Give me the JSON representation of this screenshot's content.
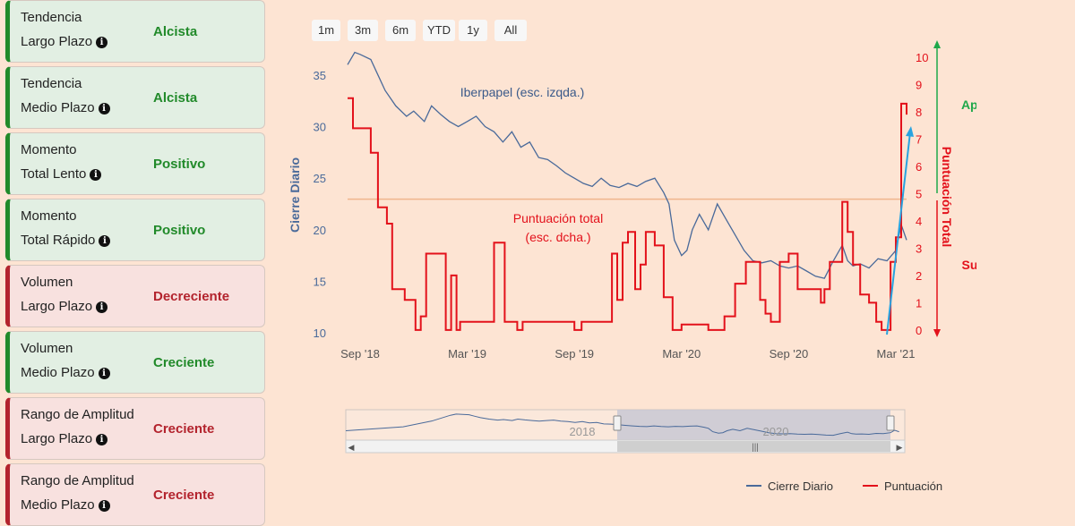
{
  "indicators": [
    {
      "line1": "Tendencia",
      "line2": "Largo Plazo",
      "status": "Alcista",
      "tone": "positive"
    },
    {
      "line1": "Tendencia",
      "line2": "Medio Plazo",
      "status": "Alcista",
      "tone": "positive"
    },
    {
      "line1": "Momento",
      "line2": "Total Lento",
      "status": "Positivo",
      "tone": "positive"
    },
    {
      "line1": "Momento",
      "line2": "Total Rápido",
      "status": "Positivo",
      "tone": "positive"
    },
    {
      "line1": "Volumen",
      "line2": "Largo Plazo",
      "status": "Decreciente",
      "tone": "negative"
    },
    {
      "line1": "Volumen",
      "line2": "Medio Plazo",
      "status": "Creciente",
      "tone": "positive"
    },
    {
      "line1": "Rango de Amplitud",
      "line2": "Largo Plazo",
      "status": "Creciente",
      "tone": "negative"
    },
    {
      "line1": "Rango de Amplitud",
      "line2": "Medio Plazo",
      "status": "Creciente",
      "tone": "negative"
    }
  ],
  "range_buttons": [
    "1m",
    "3m",
    "6m",
    "YTD",
    "1y",
    "All"
  ],
  "colors": {
    "price": "#4a6a9a",
    "score": "#e3111b",
    "approved": "#1fa84a",
    "threshold": "#f0b58d",
    "trend_arrow": "#29a3e0"
  },
  "chart_data": {
    "type": "line",
    "title": "",
    "x_tick_labels": [
      "Sep '18",
      "Mar '19",
      "Sep '19",
      "Mar '20",
      "Sep '20",
      "Mar '21"
    ],
    "x_tick_months": [
      0,
      6,
      12,
      18,
      24,
      30
    ],
    "x_range_months": [
      -0.7,
      30.6
    ],
    "left_axis": {
      "label": "Cierre Diario",
      "ticks": [
        10,
        15,
        20,
        25,
        30,
        35
      ],
      "range": [
        9.5,
        37.5
      ]
    },
    "right_axis": {
      "label": "Puntuación Total",
      "ticks": [
        0,
        1,
        2,
        3,
        4,
        5,
        6,
        7,
        8,
        9,
        10
      ],
      "range": [
        -0.3,
        10.3
      ]
    },
    "threshold": 4.8,
    "annotations": {
      "price_series": "Iberpapel (esc. izqda.)",
      "score_line1": "Puntuación total",
      "score_line2": "(esc. dcha.)",
      "approved": "Aprobado",
      "failed": "Suspenso"
    },
    "series": [
      {
        "name": "Cierre Diario",
        "axis": "left",
        "x": [
          -0.7,
          -0.3,
          0,
          0.6,
          1,
          1.4,
          2,
          2.6,
          3,
          3.6,
          4,
          4.5,
          5,
          5.5,
          6,
          6.5,
          7,
          7.5,
          8,
          8.5,
          9,
          9.5,
          10,
          10.5,
          11,
          11.5,
          12,
          12.5,
          13,
          13.5,
          14,
          14.5,
          15,
          15.5,
          16,
          16.5,
          17,
          17.3,
          17.6,
          18,
          18.3,
          18.6,
          19,
          19.5,
          20,
          20.5,
          21,
          21.5,
          22,
          22.5,
          23,
          23.5,
          24,
          24.5,
          25,
          25.5,
          26,
          26.5,
          27,
          27.3,
          27.6,
          28,
          28.5,
          29,
          29.5,
          30,
          30.3,
          30.6
        ],
        "values": [
          36.0,
          37.2,
          37.0,
          36.5,
          35.0,
          33.5,
          32.0,
          31.0,
          31.5,
          30.5,
          32.0,
          31.2,
          30.5,
          30.0,
          30.5,
          31.0,
          30.0,
          29.5,
          28.5,
          29.5,
          28.0,
          28.5,
          27.0,
          26.8,
          26.2,
          25.5,
          25.0,
          24.5,
          24.2,
          25.0,
          24.3,
          24.1,
          24.5,
          24.2,
          24.7,
          25.0,
          23.6,
          22.5,
          19.0,
          17.5,
          18.0,
          20.0,
          21.5,
          20.0,
          22.5,
          21.0,
          19.5,
          18.0,
          17.0,
          16.8,
          17.0,
          16.5,
          16.3,
          16.5,
          16.0,
          15.5,
          15.3,
          17.0,
          18.5,
          17.0,
          16.5,
          16.7,
          16.3,
          17.2,
          17.0,
          18.0,
          20.5,
          19.0
        ]
      },
      {
        "name": "Puntuación",
        "axis": "right",
        "steps": [
          [
            -0.7,
            8.5
          ],
          [
            -0.4,
            7.4
          ],
          [
            0.6,
            6.5
          ],
          [
            1,
            4.5
          ],
          [
            1.5,
            3.9
          ],
          [
            1.8,
            1.5
          ],
          [
            2.5,
            1.1
          ],
          [
            3.1,
            0
          ],
          [
            3.4,
            0.5
          ],
          [
            3.7,
            2.8
          ],
          [
            4.8,
            0
          ],
          [
            5.1,
            2.0
          ],
          [
            5.4,
            0
          ],
          [
            5.6,
            0.3
          ],
          [
            7.5,
            3.2
          ],
          [
            8.1,
            0.3
          ],
          [
            8.8,
            0
          ],
          [
            9.1,
            0.3
          ],
          [
            12,
            0
          ],
          [
            12.4,
            0.3
          ],
          [
            14.1,
            2.8
          ],
          [
            14.4,
            1.1
          ],
          [
            14.7,
            3.2
          ],
          [
            15.0,
            3.6
          ],
          [
            15.4,
            1.5
          ],
          [
            15.7,
            2.4
          ],
          [
            16.0,
            3.6
          ],
          [
            16.5,
            3.1
          ],
          [
            17.0,
            1.2
          ],
          [
            17.5,
            0
          ],
          [
            18.0,
            0.2
          ],
          [
            19.5,
            0
          ],
          [
            20.4,
            0.5
          ],
          [
            21.0,
            1.7
          ],
          [
            21.6,
            2.5
          ],
          [
            22.4,
            1.1
          ],
          [
            22.7,
            0.6
          ],
          [
            23.0,
            0.3
          ],
          [
            23.5,
            2.5
          ],
          [
            24.0,
            2.8
          ],
          [
            24.5,
            1.5
          ],
          [
            25.8,
            1.0
          ],
          [
            26.0,
            1.5
          ],
          [
            26.3,
            2.5
          ],
          [
            27.0,
            4.7
          ],
          [
            27.3,
            3.6
          ],
          [
            27.6,
            2.4
          ],
          [
            28.0,
            1.3
          ],
          [
            28.5,
            1.0
          ],
          [
            28.9,
            0.3
          ],
          [
            29.2,
            0
          ],
          [
            29.7,
            2.5
          ],
          [
            30.0,
            3.4
          ],
          [
            30.3,
            8.3
          ],
          [
            30.6,
            7.9
          ]
        ]
      }
    ],
    "legend": {
      "position": "bottom-right",
      "items": [
        "Cierre Diario",
        "Puntuación"
      ]
    },
    "navigator": {
      "year_labels": [
        "2018",
        "2020"
      ]
    }
  }
}
